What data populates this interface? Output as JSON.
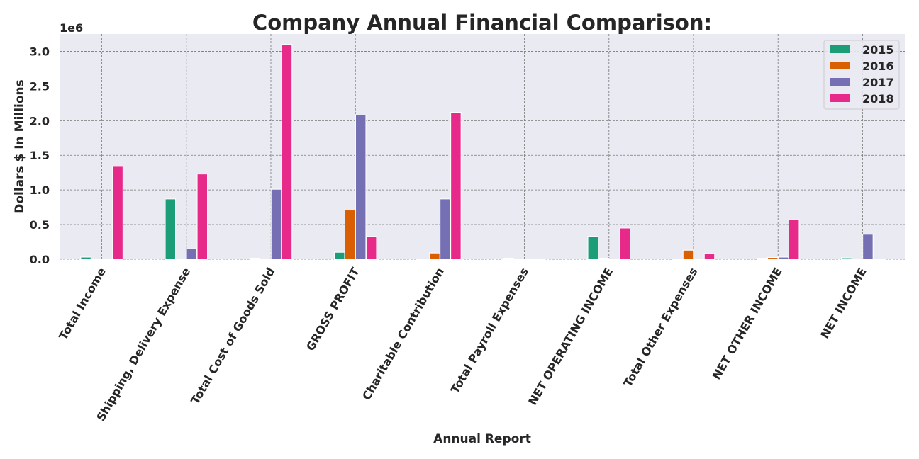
{
  "chart_data": {
    "type": "bar",
    "title": "Company Annual Financial Comparison:",
    "xlabel": "Annual Report",
    "ylabel": "Dollars $ In Millions",
    "y_offset_label": "1e6",
    "ylim": [
      0,
      3250000
    ],
    "yticks": [
      0,
      500000,
      1000000,
      1500000,
      2000000,
      2500000,
      3000000
    ],
    "ytick_labels": [
      "0.0",
      "0.5",
      "1.0",
      "1.5",
      "2.0",
      "2.5",
      "3.0"
    ],
    "grid": true,
    "legend_position": "top-right",
    "categories": [
      "Total Income",
      "Shipping, Delivery Expense",
      "Total Cost of Goods Sold",
      "GROSS PROFIT",
      "Charitable Contribution",
      "Total Payroll Expenses",
      "NET OPERATING INCOME",
      "Total Other Expenses",
      "NET OTHER INCOME",
      "NET INCOME"
    ],
    "series": [
      {
        "name": "2015",
        "color": "#1b9e77",
        "values": [
          30000,
          870000,
          15000,
          100000,
          5000,
          15000,
          330000,
          5000,
          15000,
          20000
        ]
      },
      {
        "name": "2016",
        "color": "#d95f02",
        "values": [
          5000,
          5000,
          5000,
          710000,
          90000,
          5000,
          15000,
          130000,
          25000,
          5000
        ]
      },
      {
        "name": "2017",
        "color": "#7570b3",
        "values": [
          5000,
          150000,
          1010000,
          2080000,
          870000,
          5000,
          5000,
          5000,
          30000,
          360000
        ]
      },
      {
        "name": "2018",
        "color": "#e7298a",
        "values": [
          1340000,
          1230000,
          3100000,
          330000,
          2120000,
          5000,
          450000,
          80000,
          570000,
          5000
        ]
      }
    ]
  }
}
